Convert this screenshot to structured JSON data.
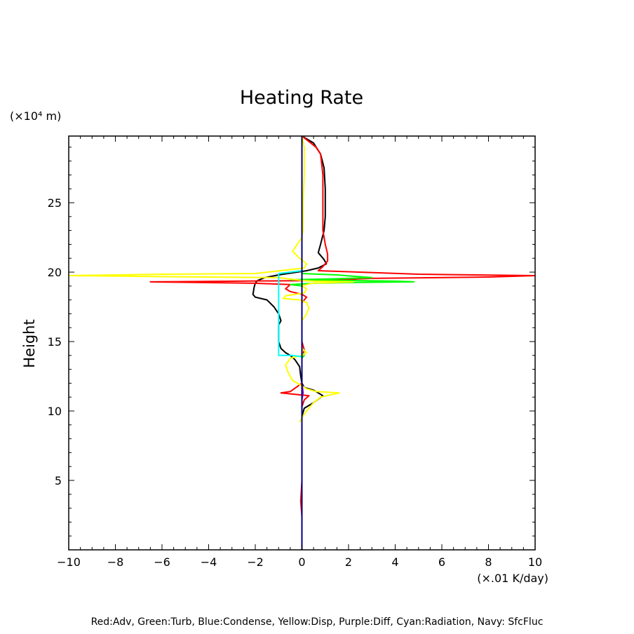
{
  "chart_data": {
    "type": "line",
    "title": "Heating Rate",
    "ylabel": "Height",
    "yunit": "(×10⁴ m)",
    "xunit": "(×.01 K/day)",
    "footer": "Red:Adv, Green:Turb, Blue:Condense, Yellow:Disp, Purple:Diff, Cyan:Radiation, Navy: SfcFluc",
    "xlim": [
      -10,
      10
    ],
    "ylim": [
      0,
      29.8
    ],
    "xticks": [
      -10,
      -8,
      -6,
      -4,
      -2,
      0,
      2,
      4,
      6,
      8,
      10
    ],
    "yticks": [
      5,
      10,
      15,
      20,
      25
    ],
    "grid": false,
    "series": [
      {
        "key": "total",
        "color": "#000000",
        "points": [
          [
            0,
            29.8
          ],
          [
            0.5,
            29.3
          ],
          [
            0.8,
            28.5
          ],
          [
            0.95,
            27.5
          ],
          [
            1.0,
            26
          ],
          [
            1.0,
            24
          ],
          [
            0.95,
            23
          ],
          [
            0.8,
            22
          ],
          [
            0.7,
            21.4
          ],
          [
            0.95,
            20.9
          ],
          [
            1.05,
            20.6
          ],
          [
            0.7,
            20.3
          ],
          [
            0.2,
            20.1
          ],
          [
            -1.0,
            19.8
          ],
          [
            -1.6,
            19.6
          ],
          [
            -1.9,
            19.4
          ],
          [
            -2.0,
            19.2
          ],
          [
            -2.05,
            18.9
          ],
          [
            -2.1,
            18.4
          ],
          [
            -2.0,
            18.2
          ],
          [
            -1.5,
            18.0
          ],
          [
            -1.2,
            17.5
          ],
          [
            -1.0,
            17.0
          ],
          [
            -0.9,
            16.5
          ],
          [
            -1.0,
            16.2
          ],
          [
            -1.0,
            15.5
          ],
          [
            -1.0,
            15.0
          ],
          [
            -0.9,
            14.5
          ],
          [
            -0.7,
            14.2
          ],
          [
            -0.5,
            14.0
          ],
          [
            -0.3,
            13.7
          ],
          [
            -0.1,
            13.2
          ],
          [
            -0.05,
            12.5
          ],
          [
            0,
            12.0
          ],
          [
            0.1,
            11.7
          ],
          [
            0.5,
            11.5
          ],
          [
            0.9,
            11.1
          ],
          [
            0.5,
            10.6
          ],
          [
            0.1,
            10.2
          ],
          [
            0,
            9.6
          ],
          [
            0,
            8
          ],
          [
            0,
            5
          ],
          [
            0,
            3
          ],
          [
            0,
            2.3
          ]
        ]
      },
      {
        "key": "adv",
        "color": "#ff0000",
        "points": [
          [
            0,
            29.8
          ],
          [
            0.6,
            29.0
          ],
          [
            0.8,
            28.5
          ],
          [
            0.9,
            27.0
          ],
          [
            0.9,
            25.5
          ],
          [
            0.9,
            23.0
          ],
          [
            1.0,
            22.0
          ],
          [
            1.1,
            21.3
          ],
          [
            1.1,
            20.8
          ],
          [
            0.9,
            20.4
          ],
          [
            0.7,
            20.1
          ],
          [
            5.0,
            19.85
          ],
          [
            10.0,
            19.75
          ],
          [
            8.0,
            19.65
          ],
          [
            3.0,
            19.55
          ],
          [
            1.0,
            19.4
          ],
          [
            -6.5,
            19.3
          ],
          [
            -2.0,
            19.2
          ],
          [
            -0.5,
            19.1
          ],
          [
            -0.7,
            18.8
          ],
          [
            -0.5,
            18.6
          ],
          [
            0,
            18.4
          ],
          [
            0.2,
            18.2
          ],
          [
            0,
            17.8
          ],
          [
            0,
            16
          ],
          [
            0,
            15
          ],
          [
            0.1,
            14.4
          ],
          [
            0,
            13.8
          ],
          [
            0,
            13
          ],
          [
            0,
            12
          ],
          [
            -0.5,
            11.4
          ],
          [
            -0.9,
            11.3
          ],
          [
            -0.3,
            11.2
          ],
          [
            0.3,
            11.1
          ],
          [
            0.1,
            10.8
          ],
          [
            0,
            10.3
          ],
          [
            0,
            9.6
          ],
          [
            0,
            8
          ],
          [
            0,
            6
          ],
          [
            0,
            5
          ],
          [
            -0.05,
            3.5
          ],
          [
            0,
            2.4
          ]
        ]
      },
      {
        "key": "turb",
        "color": "#00ff00",
        "points": [
          [
            0,
            20.2
          ],
          [
            0,
            19.9
          ],
          [
            1.5,
            19.8
          ],
          [
            3.0,
            19.6
          ],
          [
            1.0,
            19.5
          ],
          [
            -0.5,
            19.45
          ],
          [
            2.0,
            19.4
          ],
          [
            4.0,
            19.35
          ],
          [
            4.8,
            19.3
          ],
          [
            2.0,
            19.25
          ],
          [
            0.5,
            19.2
          ],
          [
            -0.5,
            19.1
          ],
          [
            0,
            19.0
          ],
          [
            0,
            18.0
          ],
          [
            0,
            14.2
          ],
          [
            0.1,
            14.0
          ],
          [
            0,
            13.8
          ],
          [
            0,
            11.5
          ],
          [
            0,
            10.8
          ],
          [
            0,
            10.0
          ],
          [
            0,
            9.5
          ]
        ]
      },
      {
        "key": "disp",
        "color": "#ffff00",
        "points": [
          [
            0,
            29.8
          ],
          [
            0.1,
            29
          ],
          [
            0.1,
            27
          ],
          [
            0.05,
            25
          ],
          [
            0.05,
            23
          ],
          [
            0,
            22.5
          ],
          [
            -0.2,
            22
          ],
          [
            -0.4,
            21.5
          ],
          [
            -0.1,
            21.0
          ],
          [
            0.2,
            20.6
          ],
          [
            0.1,
            20.3
          ],
          [
            -2.0,
            19.9
          ],
          [
            -6.0,
            19.85
          ],
          [
            -10.0,
            19.75
          ],
          [
            -4.0,
            19.65
          ],
          [
            -1.0,
            19.6
          ],
          [
            -0.5,
            19.5
          ],
          [
            0,
            19.4
          ],
          [
            0.5,
            19.35
          ],
          [
            2.2,
            19.3
          ],
          [
            0.4,
            19.2
          ],
          [
            0,
            19.0
          ],
          [
            0.2,
            18.8
          ],
          [
            0.1,
            18.5
          ],
          [
            -0.7,
            18.3
          ],
          [
            -0.8,
            18.1
          ],
          [
            -0.1,
            18.0
          ],
          [
            0.2,
            17.8
          ],
          [
            0.3,
            17.4
          ],
          [
            0.2,
            17.0
          ],
          [
            0,
            16.5
          ],
          [
            0,
            15.5
          ],
          [
            0,
            14.5
          ],
          [
            0.2,
            14.2
          ],
          [
            0,
            14.0
          ],
          [
            -0.5,
            13.8
          ],
          [
            -0.7,
            13.3
          ],
          [
            -0.6,
            12.8
          ],
          [
            -0.4,
            12.2
          ],
          [
            -0.1,
            11.9
          ],
          [
            0.2,
            11.6
          ],
          [
            0.6,
            11.4
          ],
          [
            1.6,
            11.3
          ],
          [
            0.8,
            11.0
          ],
          [
            0.5,
            10.6
          ],
          [
            0.2,
            10.0
          ],
          [
            0,
            9.5
          ],
          [
            -0.1,
            9.2
          ]
        ]
      },
      {
        "key": "radiation",
        "color": "#00ffff",
        "points": [
          [
            0,
            20.1
          ],
          [
            -1.0,
            19.9
          ],
          [
            -1.0,
            14.0
          ],
          [
            -0.4,
            14.0
          ],
          [
            0,
            13.9
          ]
        ]
      },
      {
        "key": "diff",
        "color": "#a000c0",
        "points": [
          [
            0,
            29.8
          ],
          [
            0,
            24
          ],
          [
            0,
            20.0
          ],
          [
            0,
            12.0
          ],
          [
            0.05,
            11.3
          ],
          [
            0,
            10.8
          ],
          [
            0,
            2.3
          ]
        ]
      },
      {
        "key": "sfcfluc",
        "color": "#000080",
        "points": [
          [
            0,
            29.8
          ],
          [
            0,
            0
          ]
        ]
      }
    ]
  }
}
